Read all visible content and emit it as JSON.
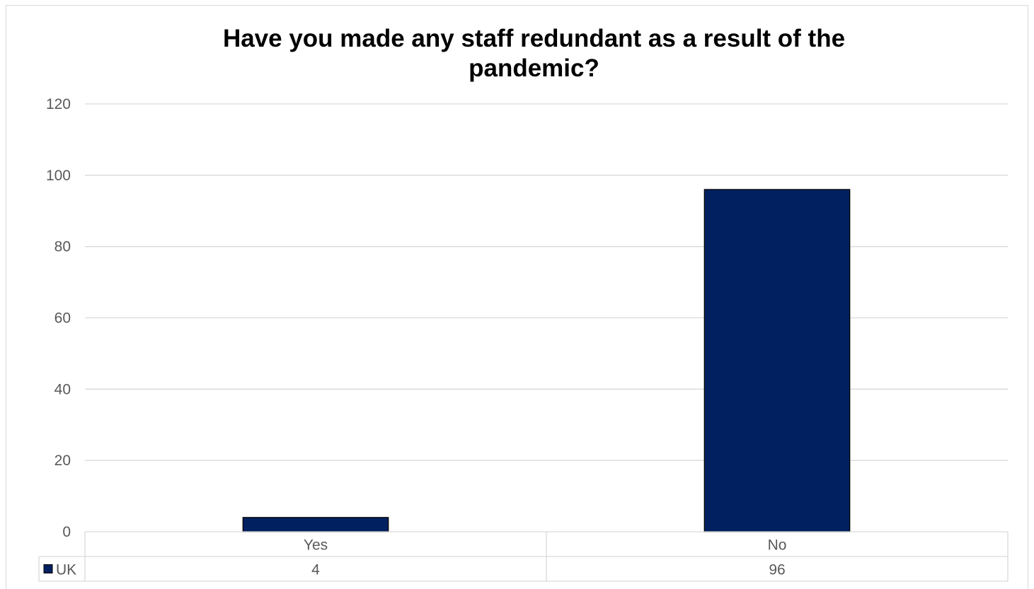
{
  "chart_data": {
    "type": "bar",
    "title": "Have you made any staff redundant as a result of the pandemic?",
    "categories": [
      "Yes",
      "No"
    ],
    "series": [
      {
        "name": "UK",
        "values": [
          4,
          96
        ],
        "color": "#002060"
      }
    ],
    "ylim": [
      0,
      120
    ],
    "yticks": [
      0,
      20,
      40,
      60,
      80,
      100,
      120
    ],
    "xlabel": "",
    "ylabel": "",
    "grid": true,
    "legend": "data-table",
    "data_table": true,
    "gridline_color": "#d9d9d9",
    "bar_outline_color": "#000000"
  }
}
